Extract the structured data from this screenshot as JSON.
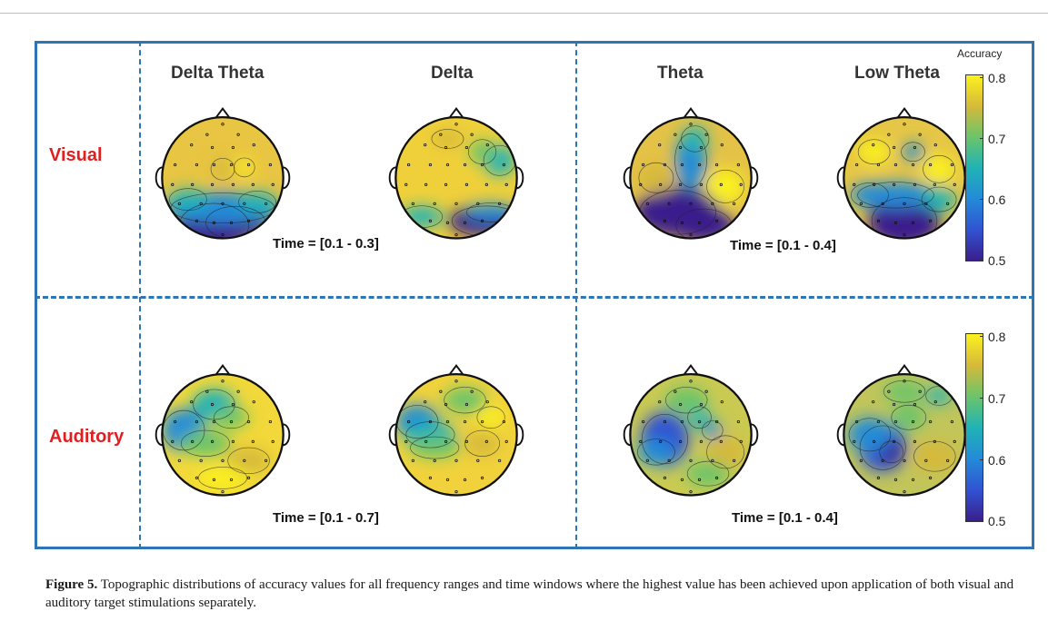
{
  "figure": {
    "panels": [
      {
        "name": "visual-delta-theta",
        "title": "Delta Theta",
        "pattern": "dt"
      },
      {
        "name": "visual-delta",
        "title": "Delta",
        "pattern": "d"
      },
      {
        "name": "visual-theta",
        "title": "Theta",
        "pattern": "t"
      },
      {
        "name": "visual-low-theta",
        "title": "Low Theta",
        "pattern": "lt"
      },
      {
        "name": "auditory-delta-theta",
        "pattern": "adt"
      },
      {
        "name": "auditory-delta",
        "pattern": "ad"
      },
      {
        "name": "auditory-theta",
        "pattern": "at"
      },
      {
        "name": "auditory-low-theta",
        "pattern": "alt"
      }
    ],
    "rows": {
      "visual": "Visual",
      "auditory": "Auditory"
    },
    "time_windows": {
      "visual_left": "Time = [0.1 - 0.3]",
      "visual_right": "Time = [0.1 - 0.4]",
      "auditory_left": "Time = [0.1 - 0.7]",
      "auditory_right": "Time = [0.1 - 0.4]"
    },
    "colorbar": {
      "title": "Accuracy",
      "ticks": [
        "0.8",
        "0.7",
        "0.6",
        "0.5"
      ],
      "range": [
        0.5,
        0.8
      ],
      "colormap": "parula",
      "colors": [
        "#3a1e8c",
        "#3153d2",
        "#238bd8",
        "#20b3b5",
        "#6bc46b",
        "#d6b93a",
        "#fbf21e"
      ]
    },
    "frame_color": "#2e75b6",
    "row_label_color": "#e02020"
  },
  "caption": {
    "label": "Figure 5.",
    "text": " Topographic distributions of accuracy values for all frequency ranges and time windows where the highest value has been achieved upon application of both visual and auditory target stimulations separately."
  }
}
